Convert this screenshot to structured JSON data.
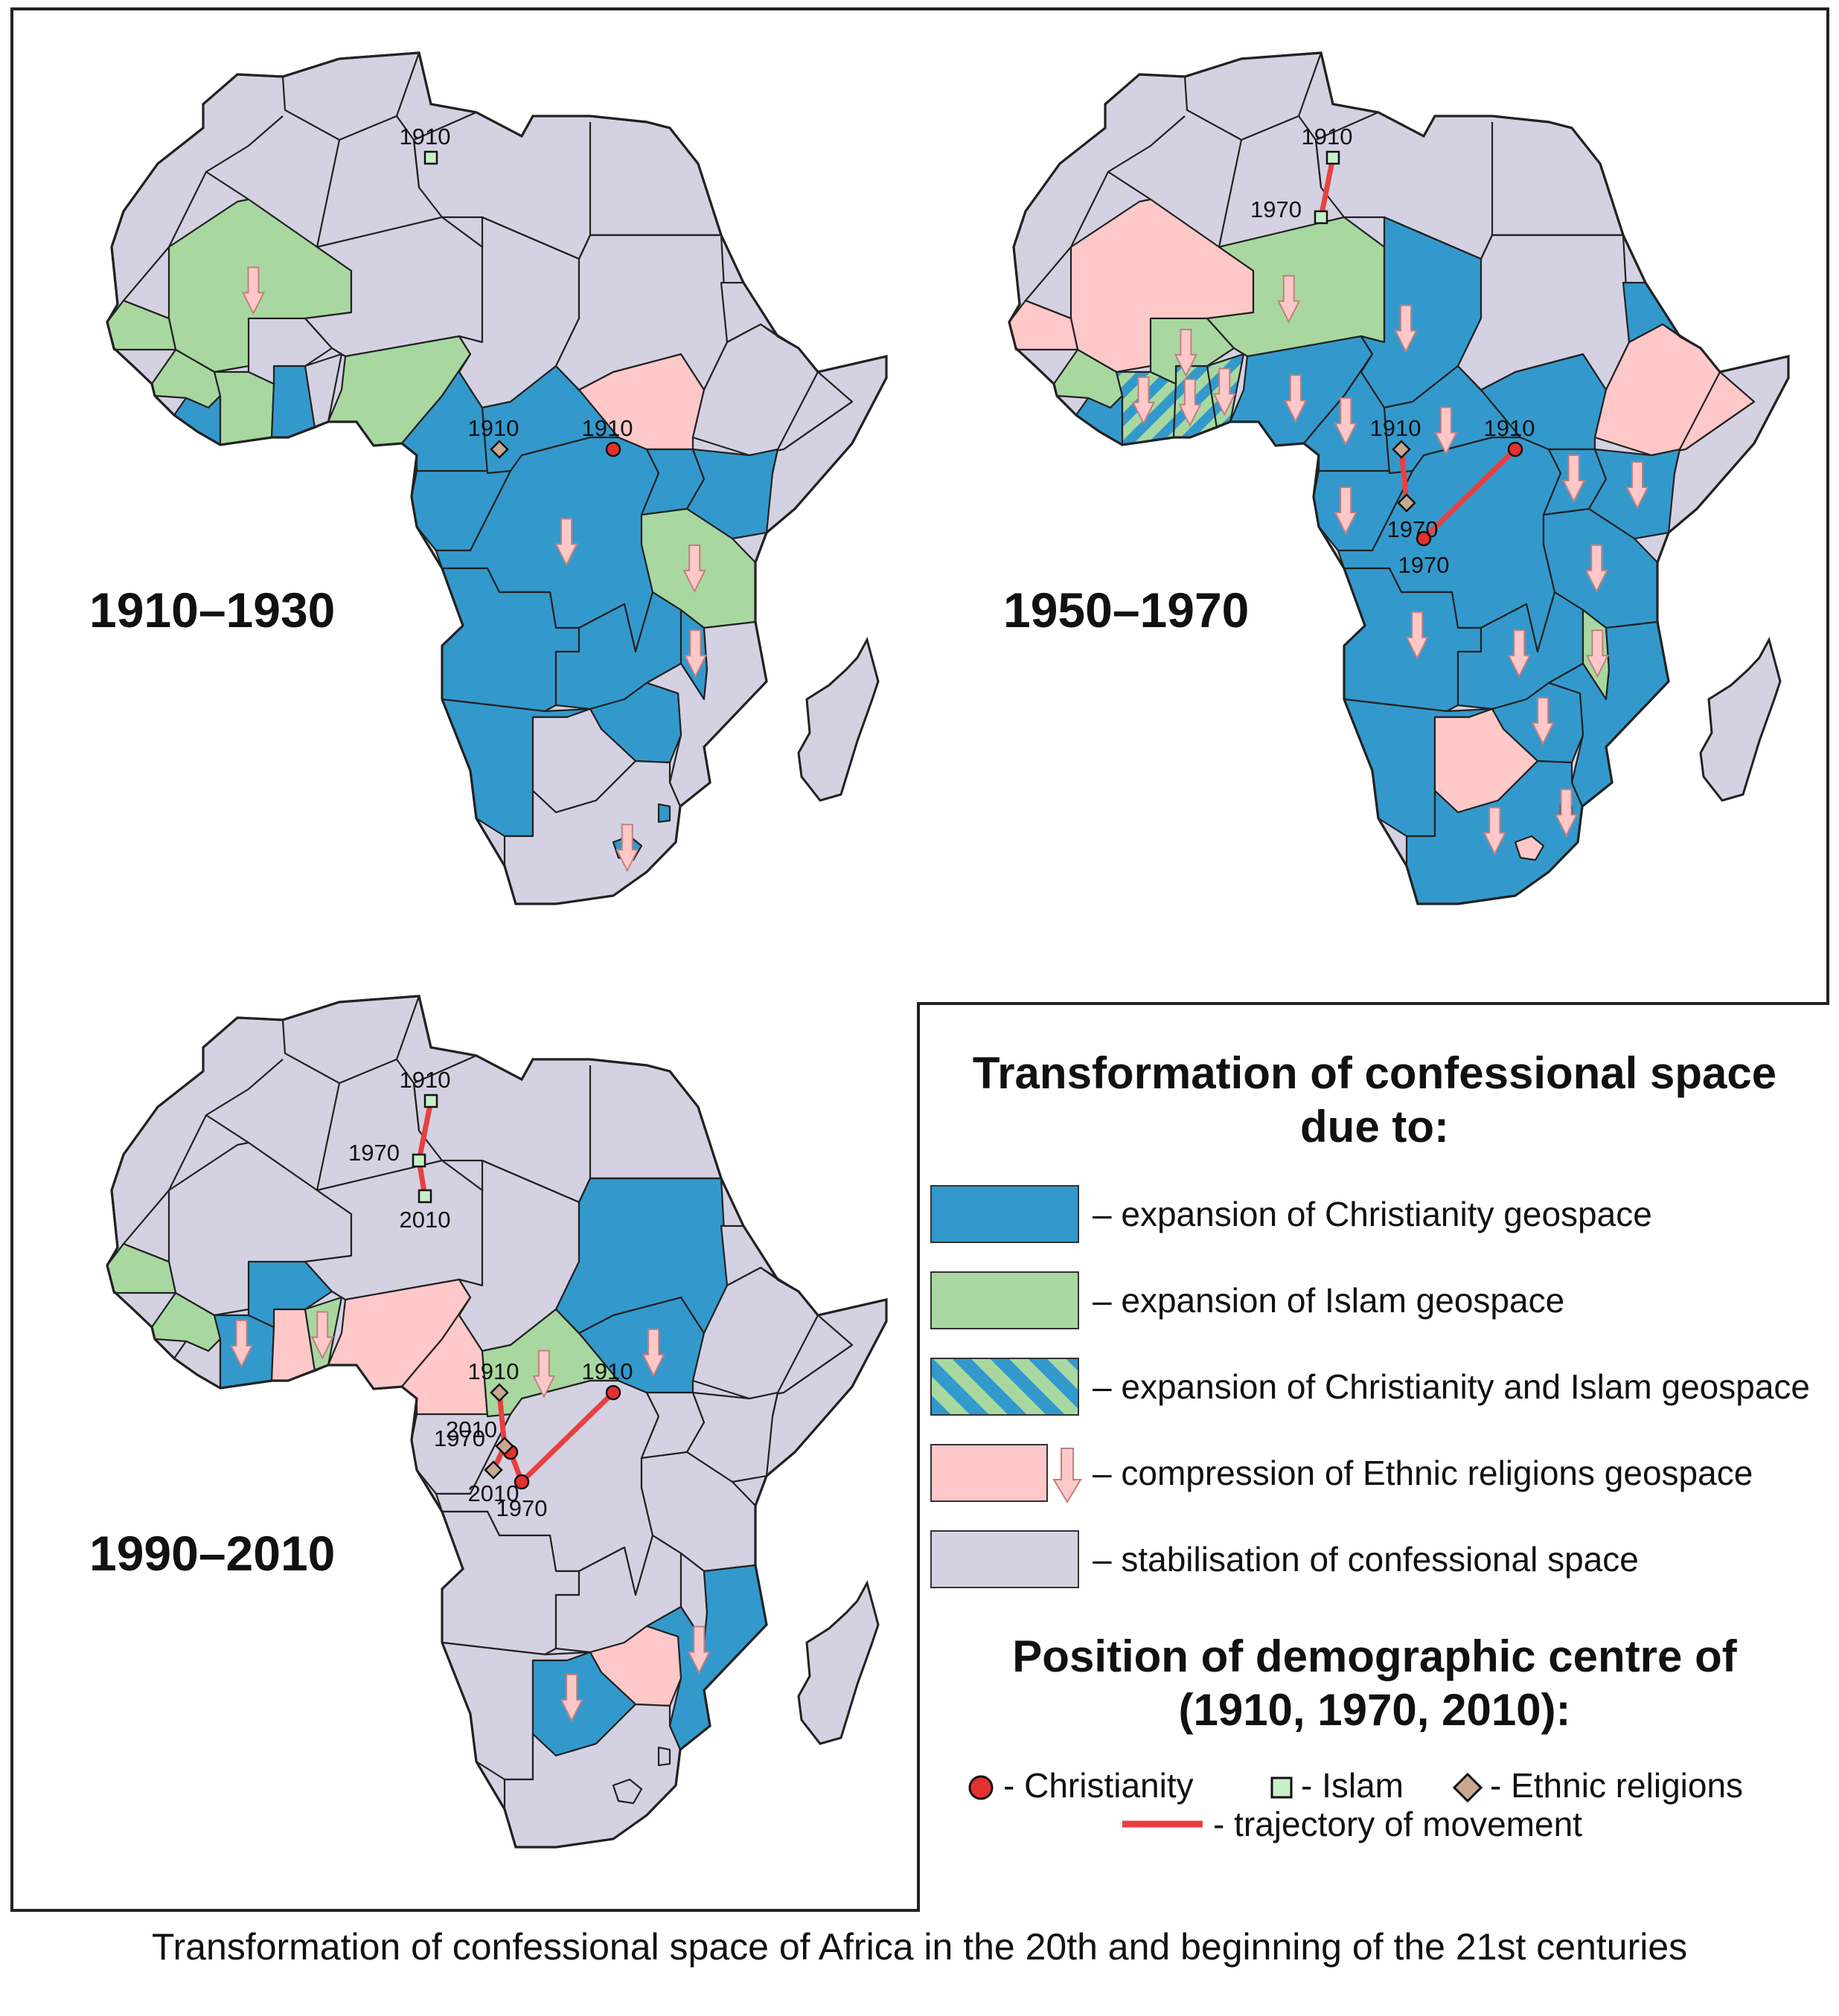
{
  "caption": "Transformation of confessional space of Africa in the 20th and beginning of the 21st centuries",
  "colors": {
    "christianity": "#3399cc",
    "islam": "#a8d8a0",
    "ethnic": "#ffc8c8",
    "stabilisation": "#d4d2e2",
    "trajectory": "#e84040",
    "marker_christianity": "#e53030",
    "marker_islam": "#c8f0c8",
    "marker_ethnic": "#c8a890"
  },
  "maps": [
    {
      "id": "p1",
      "period": "1910–1930",
      "zones": [
        {
          "region": "mali",
          "type": "islam",
          "arrow": true
        },
        {
          "region": "senegambia",
          "type": "islam",
          "arrow": false
        },
        {
          "region": "guinea",
          "type": "islam",
          "arrow": false
        },
        {
          "region": "ivory",
          "type": "islam",
          "arrow": false
        },
        {
          "region": "nigeria",
          "type": "islam",
          "arrow": false
        },
        {
          "region": "ghana",
          "type": "christianity",
          "arrow": false
        },
        {
          "region": "liberia",
          "type": "christianity",
          "arrow": false
        },
        {
          "region": "cameroon",
          "type": "christianity",
          "arrow": false
        },
        {
          "region": "gabon",
          "type": "christianity",
          "arrow": false
        },
        {
          "region": "car",
          "type": "christianity",
          "arrow": false
        },
        {
          "region": "congo",
          "type": "christianity",
          "arrow": true
        },
        {
          "region": "southsudan",
          "type": "ethnic",
          "arrow": false
        },
        {
          "region": "uganda",
          "type": "christianity",
          "arrow": false
        },
        {
          "region": "kenya",
          "type": "christianity",
          "arrow": false
        },
        {
          "region": "tanzania",
          "type": "islam",
          "arrow": true
        },
        {
          "region": "angola",
          "type": "christianity",
          "arrow": false
        },
        {
          "region": "zambia",
          "type": "christianity",
          "arrow": false
        },
        {
          "region": "zimbabwe",
          "type": "christianity",
          "arrow": false
        },
        {
          "region": "malawi",
          "type": "christianity",
          "arrow": true
        },
        {
          "region": "namibia",
          "type": "christianity",
          "arrow": false
        },
        {
          "region": "lesotho",
          "type": "christianity",
          "arrow": true
        },
        {
          "region": "swaziland",
          "type": "christianity",
          "arrow": false
        }
      ],
      "centres": [
        {
          "religion": "islam",
          "points": [
            {
              "label": "1910",
              "lon": 11.0,
              "lat": 28.5
            }
          ]
        },
        {
          "religion": "christianity",
          "points": [
            {
              "label": "1910",
              "lon": 27.0,
              "lat": 4.0
            }
          ]
        },
        {
          "religion": "ethnic",
          "points": [
            {
              "label": "1910",
              "lon": 17.0,
              "lat": 4.0
            }
          ]
        }
      ]
    },
    {
      "id": "p2",
      "period": "1950–1970",
      "zones": [
        {
          "region": "mali",
          "type": "ethnic",
          "arrow": false
        },
        {
          "region": "senegambia",
          "type": "ethnic",
          "arrow": false
        },
        {
          "region": "guinea",
          "type": "islam",
          "arrow": false
        },
        {
          "region": "burkina",
          "type": "islam",
          "arrow": true
        },
        {
          "region": "niger",
          "type": "islam",
          "arrow": true
        },
        {
          "region": "ivory",
          "type": "mixed",
          "arrow": true
        },
        {
          "region": "ghana",
          "type": "mixed",
          "arrow": true
        },
        {
          "region": "togo",
          "type": "mixed",
          "arrow": true
        },
        {
          "region": "liberia",
          "type": "christianity",
          "arrow": false
        },
        {
          "region": "nigeria",
          "type": "christianity",
          "arrow": true
        },
        {
          "region": "chad",
          "type": "christianity",
          "arrow": true
        },
        {
          "region": "cameroon",
          "type": "christianity",
          "arrow": true
        },
        {
          "region": "gabon",
          "type": "christianity",
          "arrow": true
        },
        {
          "region": "car",
          "type": "christianity",
          "arrow": true
        },
        {
          "region": "congo",
          "type": "christianity",
          "arrow": false
        },
        {
          "region": "southsudan",
          "type": "christianity",
          "arrow": false
        },
        {
          "region": "uganda",
          "type": "christianity",
          "arrow": true
        },
        {
          "region": "kenya",
          "type": "christianity",
          "arrow": true
        },
        {
          "region": "eritrea",
          "type": "christianity",
          "arrow": false
        },
        {
          "region": "ethiopia",
          "type": "ethnic",
          "arrow": false
        },
        {
          "region": "tanzania",
          "type": "christianity",
          "arrow": true
        },
        {
          "region": "angola",
          "type": "christianity",
          "arrow": true
        },
        {
          "region": "zambia",
          "type": "christianity",
          "arrow": true
        },
        {
          "region": "zimbabwe",
          "type": "christianity",
          "arrow": true
        },
        {
          "region": "mozambique",
          "type": "christianity",
          "arrow": false
        },
        {
          "region": "malawi",
          "type": "islam",
          "arrow": true
        },
        {
          "region": "namibia",
          "type": "christianity",
          "arrow": false
        },
        {
          "region": "botswana",
          "type": "ethnic",
          "arrow": false
        },
        {
          "region": "southafrica",
          "type": "christianity",
          "arrow": true
        },
        {
          "region": "lesotho",
          "type": "ethnic",
          "arrow": false
        },
        {
          "region": "swaziland",
          "type": "christianity",
          "arrow": true
        }
      ],
      "centres": [
        {
          "religion": "islam",
          "points": [
            {
              "label": "1910",
              "lon": 11.0,
              "lat": 28.5
            },
            {
              "label": "1970",
              "lon": 10.0,
              "lat": 23.5
            }
          ]
        },
        {
          "religion": "christianity",
          "points": [
            {
              "label": "1910",
              "lon": 27.0,
              "lat": 4.0
            },
            {
              "label": "1970",
              "lon": 19.0,
              "lat": -3.5
            }
          ]
        },
        {
          "religion": "ethnic",
          "points": [
            {
              "label": "1910",
              "lon": 17.0,
              "lat": 4.0
            },
            {
              "label": "1970",
              "lon": 17.5,
              "lat": -0.5
            }
          ]
        }
      ]
    },
    {
      "id": "p3",
      "period": "1990–2010",
      "zones": [
        {
          "region": "senegambia",
          "type": "islam",
          "arrow": false
        },
        {
          "region": "guinea",
          "type": "islam",
          "arrow": false
        },
        {
          "region": "burkina",
          "type": "christianity",
          "arrow": false
        },
        {
          "region": "ivory",
          "type": "christianity",
          "arrow": true
        },
        {
          "region": "ghana",
          "type": "ethnic",
          "arrow": false
        },
        {
          "region": "togo",
          "type": "islam",
          "arrow": true
        },
        {
          "region": "nigeria",
          "type": "ethnic",
          "arrow": false
        },
        {
          "region": "cameroon",
          "type": "ethnic",
          "arrow": false
        },
        {
          "region": "car",
          "type": "islam",
          "arrow": true
        },
        {
          "region": "sudan",
          "type": "christianity",
          "arrow": false
        },
        {
          "region": "southsudan",
          "type": "christianity",
          "arrow": true
        },
        {
          "region": "zimbabwe",
          "type": "ethnic",
          "arrow": false
        },
        {
          "region": "mozambique",
          "type": "christianity",
          "arrow": true
        },
        {
          "region": "botswana",
          "type": "christianity",
          "arrow": true
        }
      ],
      "centres": [
        {
          "religion": "islam",
          "points": [
            {
              "label": "1910",
              "lon": 11.0,
              "lat": 28.5
            },
            {
              "label": "1970",
              "lon": 10.0,
              "lat": 23.5
            },
            {
              "label": "2010",
              "lon": 10.5,
              "lat": 20.5
            }
          ]
        },
        {
          "religion": "christianity",
          "points": [
            {
              "label": "1910",
              "lon": 27.0,
              "lat": 4.0
            },
            {
              "label": "1970",
              "lon": 19.0,
              "lat": -3.5
            },
            {
              "label": "2010",
              "lon": 18.0,
              "lat": -1.0
            }
          ]
        },
        {
          "religion": "ethnic",
          "points": [
            {
              "label": "1910",
              "lon": 17.0,
              "lat": 4.0
            },
            {
              "label": "1970",
              "lon": 17.5,
              "lat": -0.5
            },
            {
              "label": "2010",
              "lon": 16.5,
              "lat": -2.5
            }
          ]
        }
      ]
    }
  ],
  "legend": {
    "title": "Transformation of confessional space due to:",
    "items": [
      {
        "key": "christianity",
        "label": "– expansion of Christianity geospace"
      },
      {
        "key": "islam",
        "label": "– expansion of Islam geospace"
      },
      {
        "key": "mixed",
        "label": "– expansion of Christianity and Islam geospace"
      },
      {
        "key": "ethnic",
        "label": "– compression of Ethnic religions geospace"
      },
      {
        "key": "stabilisation",
        "label": "– stabilisation of confessional space"
      }
    ],
    "centre_title": "Position of demographic centre of (1910, 1970, 2010):",
    "markers": {
      "christianity": "- Christianity",
      "islam": "- Islam",
      "ethnic": "- Ethnic religions",
      "trajectory": "- trajectory of movement"
    }
  }
}
